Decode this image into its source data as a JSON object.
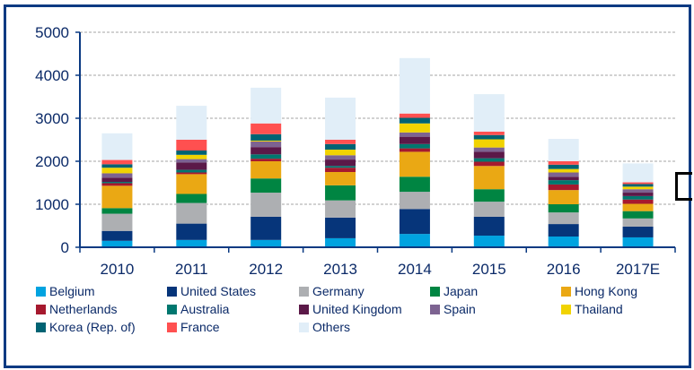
{
  "chart_data": {
    "type": "bar",
    "stacked": true,
    "categories": [
      "2010",
      "2011",
      "2012",
      "2013",
      "2014",
      "2015",
      "2016",
      "2017E"
    ],
    "ylim": [
      0,
      5000
    ],
    "yticks": [
      "0",
      "1000",
      "2000",
      "3000",
      "4000",
      "5000"
    ],
    "grid": true,
    "legend_position": "bottom",
    "series": [
      {
        "name": "Belgium",
        "color": "#00a3e0",
        "values": [
          150,
          170,
          170,
          210,
          310,
          270,
          250,
          230
        ]
      },
      {
        "name": "United States",
        "color": "#06357a",
        "values": [
          230,
          380,
          540,
          480,
          580,
          440,
          290,
          250
        ]
      },
      {
        "name": "Germany",
        "color": "#adafb2",
        "values": [
          400,
          480,
          560,
          400,
          400,
          350,
          270,
          190
        ]
      },
      {
        "name": "Japan",
        "color": "#008542",
        "values": [
          130,
          210,
          330,
          350,
          350,
          290,
          190,
          170
        ]
      },
      {
        "name": "Hong Kong",
        "color": "#eaa814",
        "values": [
          520,
          460,
          400,
          310,
          580,
          540,
          330,
          170
        ]
      },
      {
        "name": "Netherlands",
        "color": "#a6192e",
        "values": [
          60,
          40,
          60,
          100,
          80,
          100,
          130,
          100
        ]
      },
      {
        "name": "Australia",
        "color": "#00776f",
        "values": [
          30,
          60,
          100,
          40,
          100,
          80,
          100,
          80
        ]
      },
      {
        "name": "United Kingdom",
        "color": "#5b1948",
        "values": [
          100,
          170,
          170,
          150,
          170,
          150,
          80,
          80
        ]
      },
      {
        "name": "Spain",
        "color": "#7d6391",
        "values": [
          100,
          80,
          130,
          100,
          100,
          100,
          100,
          80
        ]
      },
      {
        "name": "Thailand",
        "color": "#f1d302",
        "values": [
          130,
          100,
          20,
          130,
          210,
          190,
          80,
          60
        ]
      },
      {
        "name": "Korea (Rep. of)",
        "color": "#006373",
        "values": [
          80,
          100,
          150,
          130,
          130,
          100,
          100,
          60
        ]
      },
      {
        "name": "France",
        "color": "#ff5050",
        "values": [
          100,
          250,
          250,
          100,
          100,
          80,
          80,
          40
        ]
      },
      {
        "name": "Others",
        "color": "#e1eef8",
        "values": [
          620,
          790,
          830,
          980,
          1290,
          870,
          520,
          440
        ]
      }
    ]
  }
}
